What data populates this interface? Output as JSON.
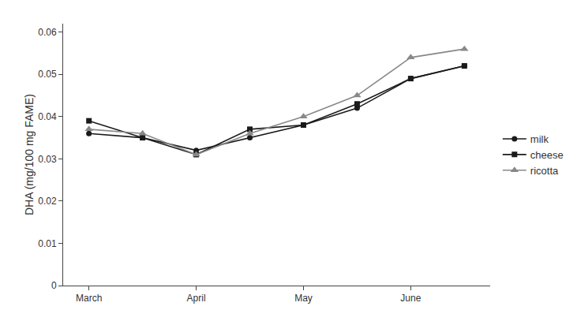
{
  "chart_data": {
    "type": "line",
    "categories": [
      "March",
      null,
      "April",
      null,
      "May",
      null,
      "June",
      null
    ],
    "series": [
      {
        "name": "milk",
        "color": "#1a1a1a",
        "marker": "circle",
        "values": [
          0.036,
          0.035,
          0.032,
          0.035,
          0.038,
          0.042,
          0.049,
          0.052
        ]
      },
      {
        "name": "cheese",
        "color": "#1a1a1a",
        "marker": "square",
        "values": [
          0.039,
          0.035,
          0.031,
          0.037,
          0.038,
          0.043,
          0.049,
          0.052
        ]
      },
      {
        "name": "ricotta",
        "color": "#888888",
        "marker": "triangle-up",
        "values": [
          0.037,
          0.036,
          0.031,
          0.036,
          0.04,
          0.045,
          0.054,
          0.056
        ]
      }
    ],
    "ylabel": "DHA (mg/100 mg FAME)",
    "ylim": [
      0,
      0.062
    ],
    "yticks": [
      0,
      0.01,
      0.02,
      0.03,
      0.04,
      0.05,
      0.06
    ],
    "grid": false,
    "legend": "right"
  }
}
